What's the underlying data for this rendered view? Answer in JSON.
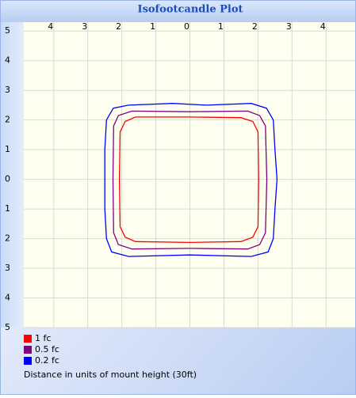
{
  "chart_data": {
    "type": "contour",
    "title": "Isofootcandle Plot",
    "xlabel": "Distance in units of mount height (30ft)",
    "xlim": [
      -4.88,
      4.88
    ],
    "ylim": [
      -5,
      5.3
    ],
    "xticks": [
      {
        "value": -4,
        "label": "4"
      },
      {
        "value": -3,
        "label": "3"
      },
      {
        "value": -2,
        "label": "2"
      },
      {
        "value": -1,
        "label": "1"
      },
      0,
      1,
      2,
      3,
      4
    ],
    "yticks": [
      5,
      4,
      3,
      2,
      1,
      0,
      {
        "value": -1,
        "label": "1"
      },
      {
        "value": -2,
        "label": "2"
      },
      {
        "value": -3,
        "label": "3"
      },
      {
        "value": -4,
        "label": "4"
      },
      {
        "value": -5,
        "label": "5"
      }
    ],
    "grid": true,
    "series": [
      {
        "name": "1 fc",
        "color": "#ff0000",
        "x": [
          -1.6,
          0,
          1.5,
          1.85,
          2.0,
          2.02,
          2.0,
          1.85,
          1.5,
          0,
          -1.6,
          -1.9,
          -2.05,
          -2.07,
          -2.05,
          -1.9,
          -1.6
        ],
        "values": [
          2.1,
          2.1,
          2.08,
          1.95,
          1.6,
          0,
          -1.6,
          -1.95,
          -2.1,
          -2.13,
          -2.1,
          -1.95,
          -1.6,
          0,
          1.6,
          1.95,
          2.1
        ]
      },
      {
        "name": "0.5 fc",
        "color": "#800080",
        "x": [
          -1.7,
          0,
          1.7,
          2.05,
          2.22,
          2.26,
          2.22,
          2.05,
          1.7,
          0,
          -1.7,
          -2.1,
          -2.24,
          -2.26,
          -2.24,
          -2.1,
          -1.7
        ],
        "values": [
          2.3,
          2.28,
          2.3,
          2.15,
          1.8,
          0,
          -1.8,
          -2.2,
          -2.35,
          -2.33,
          -2.35,
          -2.2,
          -1.8,
          0,
          1.8,
          2.15,
          2.3
        ]
      },
      {
        "name": "0.2 fc",
        "color": "#0000ff",
        "x": [
          -1.8,
          -0.5,
          0.5,
          1.8,
          2.25,
          2.45,
          2.5,
          2.56,
          2.5,
          2.45,
          2.3,
          1.8,
          0,
          -1.8,
          -2.3,
          -2.45,
          -2.5,
          -2.5,
          -2.5,
          -2.45,
          -2.25,
          -1.8
        ],
        "values": [
          2.5,
          2.56,
          2.5,
          2.56,
          2.4,
          2.0,
          1.0,
          0,
          -1.0,
          -2.0,
          -2.45,
          -2.6,
          -2.55,
          -2.6,
          -2.45,
          -2.0,
          -1,
          0,
          1,
          2.0,
          2.4,
          2.5
        ]
      }
    ]
  }
}
